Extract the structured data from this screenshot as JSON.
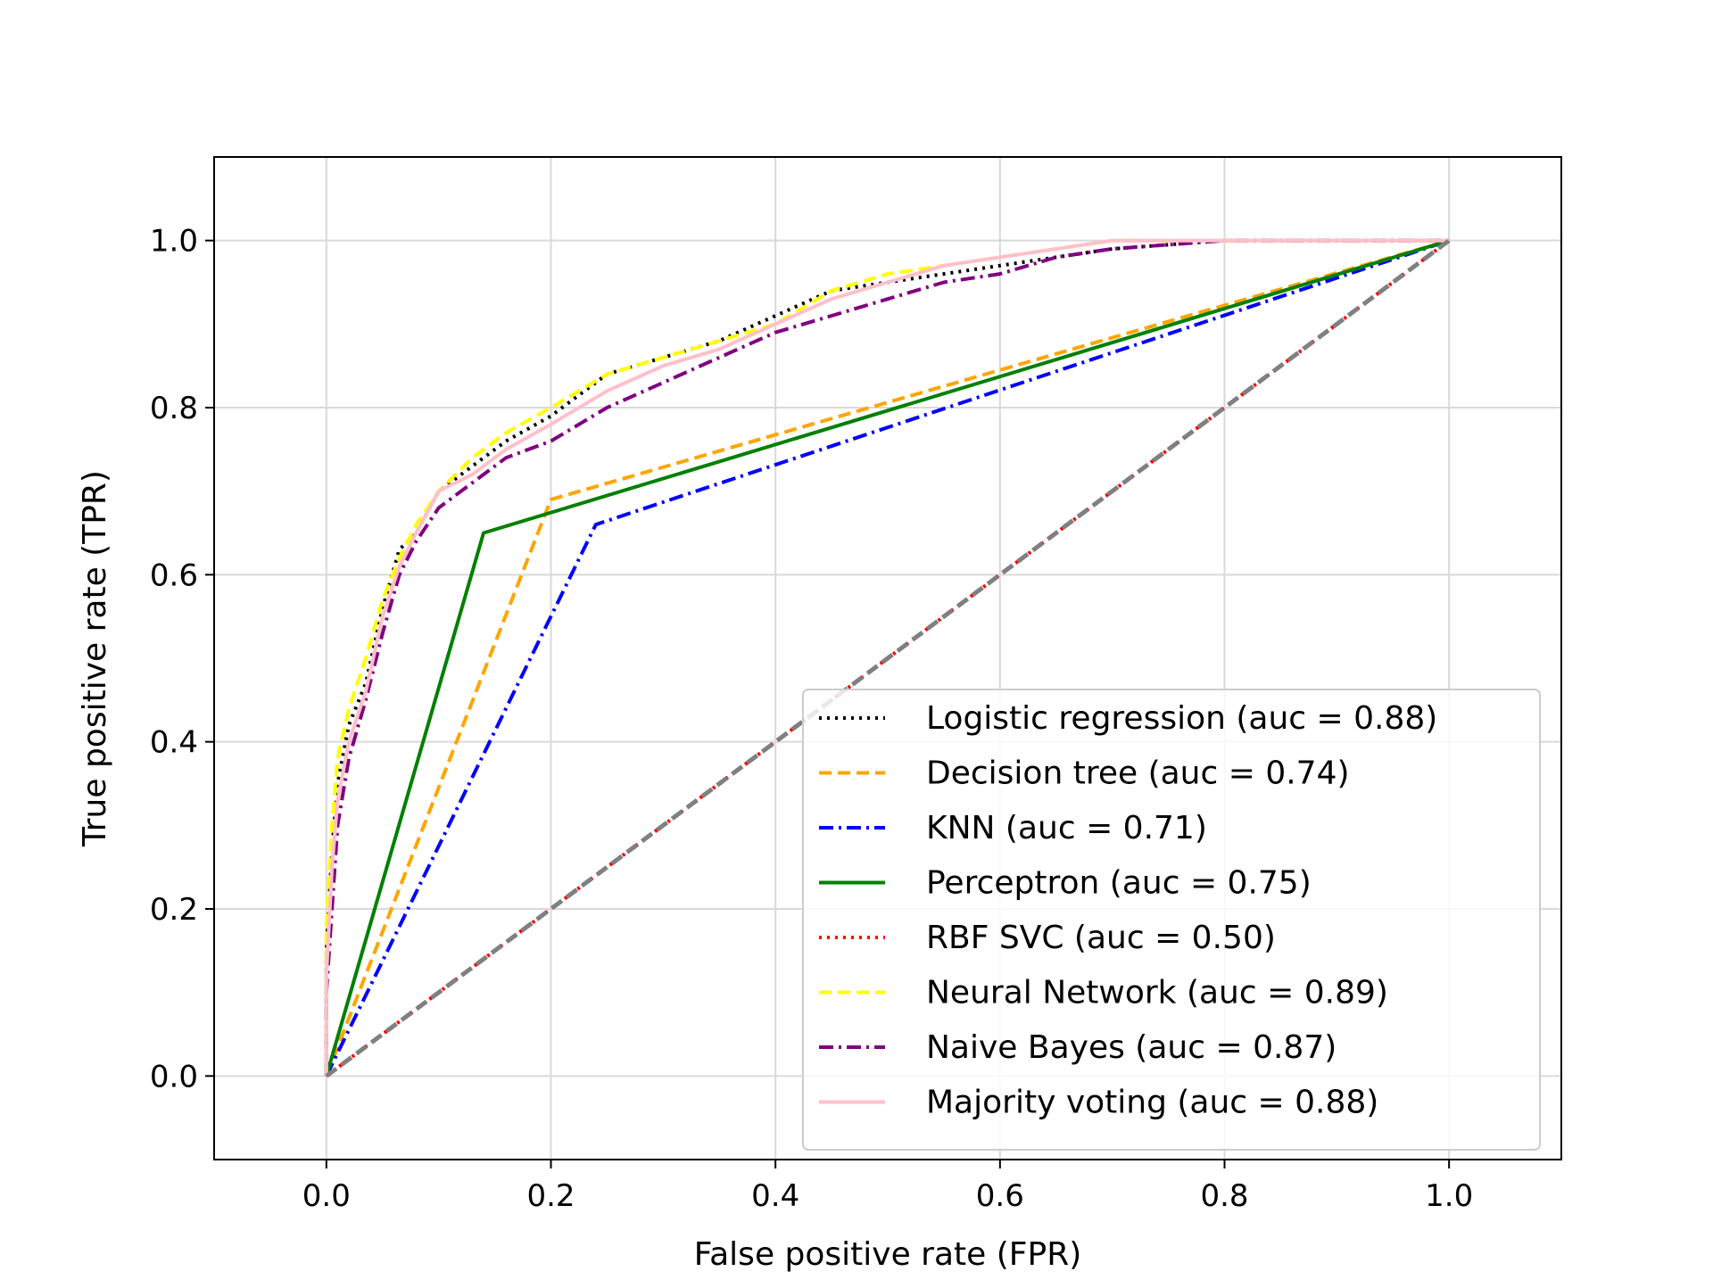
{
  "chart_data": {
    "type": "line",
    "title": "",
    "xlabel": "False positive rate (FPR)",
    "ylabel": "True positive rate (TPR)",
    "xlim": [
      -0.1,
      1.1
    ],
    "ylim": [
      -0.1,
      1.1
    ],
    "xticks": [
      0.0,
      0.2,
      0.4,
      0.6,
      0.8,
      1.0
    ],
    "yticks": [
      0.0,
      0.2,
      0.4,
      0.6,
      0.8,
      1.0
    ],
    "xtick_labels": [
      "0.0",
      "0.2",
      "0.4",
      "0.6",
      "0.8",
      "1.0"
    ],
    "ytick_labels": [
      "0.0",
      "0.2",
      "0.4",
      "0.6",
      "0.8",
      "1.0"
    ],
    "grid": true,
    "legend_position": "lower-right",
    "series": [
      {
        "name": "Logistic regression (auc = 0.88)",
        "color": "#000000",
        "style": "dotted",
        "x": [
          0.0,
          0.0,
          0.005,
          0.01,
          0.02,
          0.035,
          0.05,
          0.065,
          0.08,
          0.1,
          0.13,
          0.16,
          0.2,
          0.25,
          0.3,
          0.35,
          0.4,
          0.45,
          0.5,
          0.55,
          0.6,
          0.65,
          0.7,
          0.8,
          0.85,
          1.0
        ],
        "y": [
          0.0,
          0.15,
          0.27,
          0.35,
          0.42,
          0.47,
          0.56,
          0.63,
          0.65,
          0.7,
          0.73,
          0.76,
          0.79,
          0.84,
          0.86,
          0.88,
          0.91,
          0.94,
          0.95,
          0.96,
          0.97,
          0.98,
          0.99,
          1.0,
          1.0,
          1.0
        ]
      },
      {
        "name": "Decision tree (auc = 0.74)",
        "color": "#FFA500",
        "style": "dashed",
        "x": [
          0.0,
          0.2,
          1.0
        ],
        "y": [
          0.0,
          0.69,
          1.0
        ]
      },
      {
        "name": "KNN (auc = 0.71)",
        "color": "#0000FF",
        "style": "dashdot",
        "x": [
          0.0,
          0.24,
          1.0
        ],
        "y": [
          0.0,
          0.66,
          1.0
        ]
      },
      {
        "name": "Perceptron (auc = 0.75)",
        "color": "#008000",
        "style": "solid",
        "x": [
          0.0,
          0.14,
          1.0
        ],
        "y": [
          0.0,
          0.65,
          1.0
        ]
      },
      {
        "name": "RBF SVC (auc = 0.50)",
        "color": "#FF0000",
        "style": "dotted",
        "x": [
          0.0,
          1.0
        ],
        "y": [
          0.0,
          1.0
        ]
      },
      {
        "name": "Neural Network (auc = 0.89)",
        "color": "#FFFF00",
        "style": "dashed",
        "x": [
          0.0,
          0.0,
          0.005,
          0.01,
          0.02,
          0.035,
          0.05,
          0.065,
          0.08,
          0.1,
          0.13,
          0.16,
          0.2,
          0.25,
          0.3,
          0.35,
          0.4,
          0.45,
          0.5,
          0.55,
          0.6,
          0.65,
          0.7,
          0.75,
          0.8,
          1.0
        ],
        "y": [
          0.0,
          0.18,
          0.3,
          0.38,
          0.44,
          0.5,
          0.57,
          0.62,
          0.66,
          0.7,
          0.74,
          0.77,
          0.8,
          0.84,
          0.86,
          0.88,
          0.9,
          0.94,
          0.96,
          0.97,
          0.98,
          0.99,
          1.0,
          1.0,
          1.0,
          1.0
        ]
      },
      {
        "name": "Naive Bayes (auc = 0.87)",
        "color": "#800080",
        "style": "dashdot",
        "x": [
          0.0,
          0.0,
          0.005,
          0.01,
          0.02,
          0.035,
          0.05,
          0.065,
          0.08,
          0.1,
          0.13,
          0.16,
          0.2,
          0.25,
          0.3,
          0.35,
          0.4,
          0.45,
          0.5,
          0.55,
          0.6,
          0.65,
          0.7,
          0.8,
          1.0
        ],
        "y": [
          0.0,
          0.1,
          0.2,
          0.3,
          0.38,
          0.45,
          0.53,
          0.6,
          0.64,
          0.68,
          0.71,
          0.74,
          0.76,
          0.8,
          0.83,
          0.86,
          0.89,
          0.91,
          0.93,
          0.95,
          0.96,
          0.98,
          0.99,
          1.0,
          1.0
        ]
      },
      {
        "name": "Majority voting (auc = 0.88)",
        "color": "#FFC0CB",
        "style": "solid",
        "x": [
          0.0,
          0.0,
          0.005,
          0.01,
          0.02,
          0.035,
          0.05,
          0.065,
          0.08,
          0.1,
          0.13,
          0.16,
          0.2,
          0.25,
          0.3,
          0.35,
          0.4,
          0.45,
          0.5,
          0.55,
          0.6,
          0.65,
          0.7,
          0.8,
          1.0
        ],
        "y": [
          0.0,
          0.12,
          0.25,
          0.33,
          0.4,
          0.46,
          0.55,
          0.61,
          0.65,
          0.7,
          0.72,
          0.75,
          0.78,
          0.82,
          0.85,
          0.87,
          0.9,
          0.93,
          0.95,
          0.97,
          0.98,
          0.99,
          1.0,
          1.0,
          1.0
        ]
      }
    ],
    "reference_line": {
      "color": "#808080",
      "style": "dashed",
      "x": [
        0.0,
        1.0
      ],
      "y": [
        0.0,
        1.0
      ]
    }
  }
}
